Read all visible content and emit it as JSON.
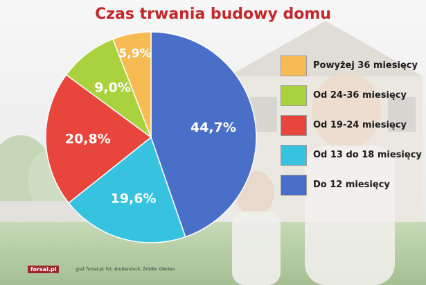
{
  "chart_data": {
    "type": "pie",
    "title": "Czas trwania budowy domu",
    "slices": [
      {
        "label": "Do 12 miesięcy",
        "value": 44.7,
        "display": "44,7%",
        "color": "#4a6fc8"
      },
      {
        "label": "Od 13 do 18 miesięcy",
        "value": 19.6,
        "display": "19,6%",
        "color": "#37c3e0"
      },
      {
        "label": "Od 19-24 miesięcy",
        "value": 20.8,
        "display": "20,8%",
        "color": "#e8453c"
      },
      {
        "label": "Od 24-36 miesięcy",
        "value": 9.0,
        "display": "9,0%",
        "color": "#a9d23e"
      },
      {
        "label": "Powyżej 36 miesięcy",
        "value": 5.9,
        "display": "5,9%",
        "color": "#f6bb52"
      }
    ],
    "legend_order": [
      "Powyżej 36 miesięcy",
      "Od 24-36 miesięcy",
      "Od 19-24 miesięcy",
      "Od 13 do 18 miesięcy",
      "Do 12 miesięcy"
    ],
    "legend_placement": "right"
  },
  "footer": {
    "logo": "forsal.pl",
    "credit": "graf. forsal.pl; fot. shutterstock; Źródło: Oferteo"
  }
}
